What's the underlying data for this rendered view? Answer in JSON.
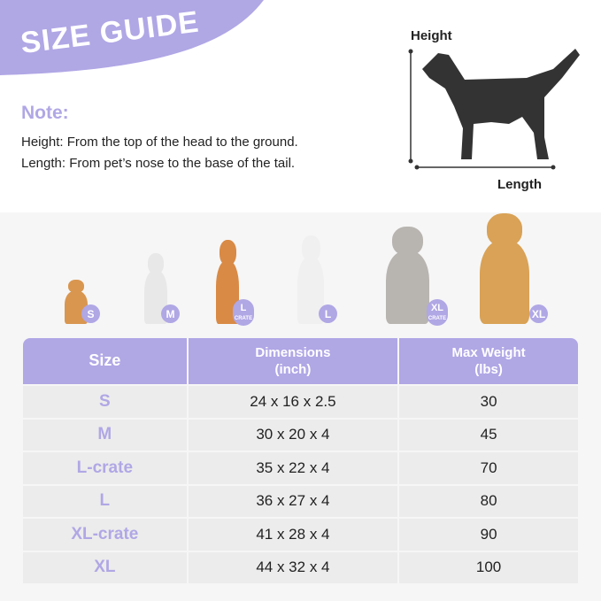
{
  "header": {
    "title": "SIZE GUIDE",
    "note_label": "Note:",
    "height_def": "Height: From the top of the head to the ground.",
    "length_def": "Length: From pet’s nose to the base of the tail."
  },
  "diagram": {
    "height_label": "Height",
    "length_label": "Length"
  },
  "colors": {
    "accent": "#b0a7e5",
    "row": "#ececec"
  },
  "dogs": [
    {
      "badge": "S",
      "sub": ""
    },
    {
      "badge": "M",
      "sub": ""
    },
    {
      "badge": "L",
      "sub": "CRATE"
    },
    {
      "badge": "L",
      "sub": ""
    },
    {
      "badge": "XL",
      "sub": "CRATE"
    },
    {
      "badge": "XL",
      "sub": ""
    }
  ],
  "table": {
    "headers": [
      "Size",
      "Dimensions",
      "(inch)",
      "Max Weight",
      "(lbs)"
    ],
    "rows": [
      [
        "S",
        "24 x 16 x 2.5",
        "30"
      ],
      [
        "M",
        "30 x 20 x 4",
        "45"
      ],
      [
        "L-crate",
        "35 x 22 x 4",
        "70"
      ],
      [
        "L",
        "36 x 27 x 4",
        "80"
      ],
      [
        "XL-crate",
        "41 x 28 x 4",
        "90"
      ],
      [
        "XL",
        "44 x 32 x 4",
        "100"
      ]
    ]
  }
}
